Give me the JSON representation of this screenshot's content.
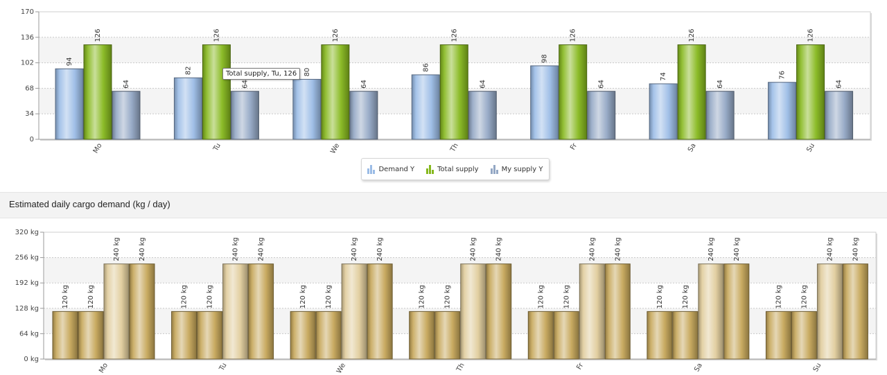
{
  "tooltip": {
    "text": "Total supply, Tu, 126"
  },
  "section": {
    "title": "Estimated daily cargo demand (kg / day)"
  },
  "colors": {
    "demand": "#9bbce6",
    "total_supply": "#86b81e",
    "my_supply": "#93a7c4",
    "cargo_dark": "#c6a75a",
    "cargo_light": "#e0cc9c"
  },
  "chart_data": [
    {
      "type": "bar",
      "categories": [
        "Mo",
        "Tu",
        "We",
        "Th",
        "Fr",
        "Sa",
        "Su"
      ],
      "series": [
        {
          "name": "Demand Y",
          "values": [
            94,
            82,
            80,
            86,
            98,
            74,
            76
          ]
        },
        {
          "name": "Total supply",
          "values": [
            126,
            126,
            126,
            126,
            126,
            126,
            126
          ]
        },
        {
          "name": "My supply Y",
          "values": [
            64,
            64,
            64,
            64,
            64,
            64,
            64
          ]
        }
      ],
      "yticks": [
        "0",
        "34",
        "68",
        "102",
        "136",
        "170"
      ],
      "ylim": [
        0,
        170
      ],
      "grid": true,
      "legend": "bottom-center"
    },
    {
      "type": "bar",
      "categories": [
        "Mo",
        "Tu",
        "We",
        "Th",
        "Fr",
        "Sa",
        "Su"
      ],
      "series": [
        {
          "values": [
            120,
            120,
            120,
            120,
            120,
            120,
            120
          ]
        },
        {
          "values": [
            120,
            120,
            120,
            120,
            120,
            120,
            120
          ]
        },
        {
          "values": [
            240,
            240,
            240,
            240,
            240,
            240,
            240
          ]
        },
        {
          "values": [
            240,
            240,
            240,
            240,
            240,
            240,
            240
          ]
        }
      ],
      "unit": "kg",
      "yticks": [
        "0 kg",
        "64 kg",
        "128 kg",
        "192 kg",
        "256 kg",
        "320 kg"
      ],
      "ylim": [
        0,
        320
      ],
      "grid": true
    }
  ]
}
